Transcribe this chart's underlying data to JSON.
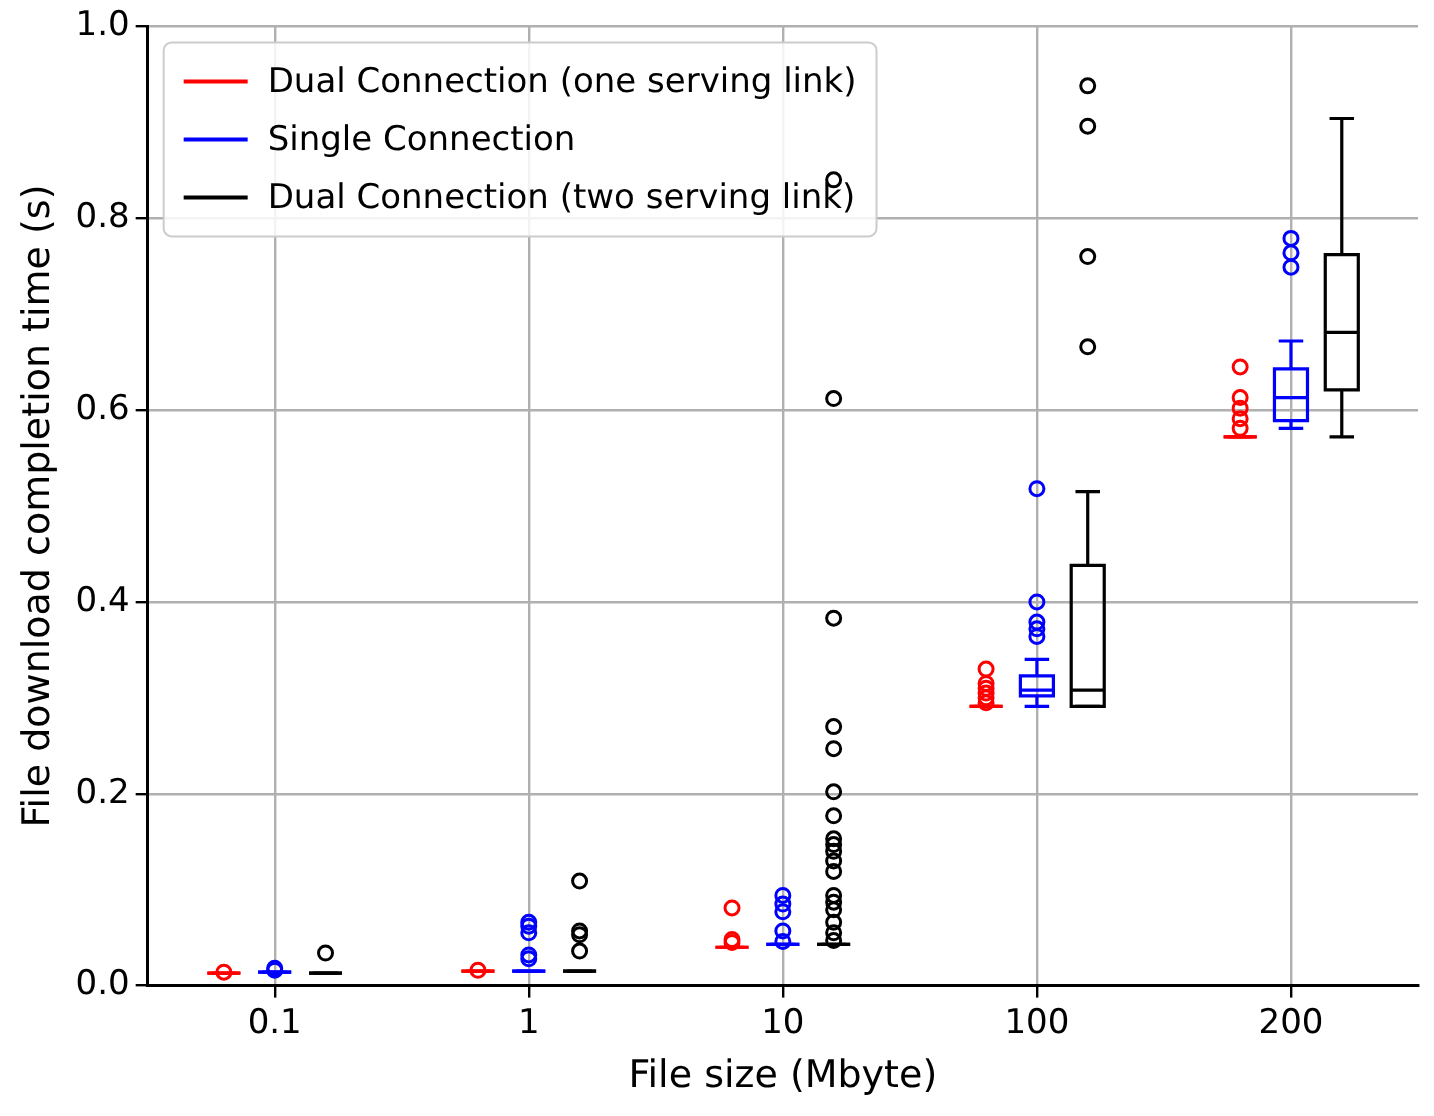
{
  "chart_data": {
    "type": "box",
    "xlabel": "File size (Mbyte)",
    "ylabel": "File download completion time (s)",
    "categories": [
      "0.1",
      "1",
      "10",
      "100",
      "200"
    ],
    "ylim": [
      0,
      1
    ],
    "yticks": [
      {
        "value": 0,
        "label": "0.0"
      },
      {
        "value": 0.2,
        "label": "0.2"
      },
      {
        "value": 0.4,
        "label": "0.4"
      },
      {
        "value": 0.6,
        "label": "0.6"
      },
      {
        "value": 0.8,
        "label": "0.8"
      },
      {
        "value": 1,
        "label": "1.0"
      }
    ],
    "grid": true,
    "legend": "top left",
    "marker": "circle",
    "series": [
      {
        "name": "Dual Connection (one serving link)",
        "color": "#ff0000",
        "boxes": [
          {
            "low": 0.013,
            "q1": 0.013,
            "median": 0.013,
            "q3": 0.013,
            "high": 0.013,
            "outliers": [
              0.014
            ]
          },
          {
            "low": 0.015,
            "q1": 0.015,
            "median": 0.015,
            "q3": 0.015,
            "high": 0.015,
            "outliers": [
              0.016
            ]
          },
          {
            "low": 0.04,
            "q1": 0.04,
            "median": 0.04,
            "q3": 0.04,
            "high": 0.04,
            "outliers": [
              0.045,
              0.048,
              0.081
            ]
          },
          {
            "low": 0.291,
            "q1": 0.291,
            "median": 0.291,
            "q3": 0.291,
            "high": 0.291,
            "outliers": [
              0.295,
              0.3,
              0.305,
              0.31,
              0.315,
              0.33
            ]
          },
          {
            "low": 0.572,
            "q1": 0.572,
            "median": 0.572,
            "q3": 0.572,
            "high": 0.572,
            "outliers": [
              0.581,
              0.591,
              0.602,
              0.613,
              0.645
            ]
          }
        ]
      },
      {
        "name": "Single Connection",
        "color": "#0000ff",
        "boxes": [
          {
            "low": 0.014,
            "q1": 0.014,
            "median": 0.014,
            "q3": 0.014,
            "high": 0.014,
            "outliers": [
              0.016,
              0.018
            ]
          },
          {
            "low": 0.015,
            "q1": 0.015,
            "median": 0.015,
            "q3": 0.015,
            "high": 0.015,
            "outliers": [
              0.028,
              0.032,
              0.055,
              0.062,
              0.066
            ]
          },
          {
            "low": 0.043,
            "q1": 0.043,
            "median": 0.043,
            "q3": 0.043,
            "high": 0.043,
            "outliers": [
              0.046,
              0.057,
              0.077,
              0.085,
              0.094
            ]
          },
          {
            "low": 0.291,
            "q1": 0.302,
            "median": 0.308,
            "q3": 0.323,
            "high": 0.34,
            "outliers": [
              0.364,
              0.372,
              0.379,
              0.4,
              0.518
            ]
          },
          {
            "low": 0.581,
            "q1": 0.589,
            "median": 0.613,
            "q3": 0.643,
            "high": 0.672,
            "outliers": [
              0.749,
              0.764,
              0.779
            ]
          }
        ]
      },
      {
        "name": "Dual Connection (two serving link)",
        "color": "#000000",
        "boxes": [
          {
            "low": 0.013,
            "q1": 0.013,
            "median": 0.013,
            "q3": 0.013,
            "high": 0.013,
            "outliers": [
              0.034
            ]
          },
          {
            "low": 0.015,
            "q1": 0.015,
            "median": 0.015,
            "q3": 0.015,
            "high": 0.015,
            "outliers": [
              0.036,
              0.053,
              0.057,
              0.109
            ]
          },
          {
            "low": 0.043,
            "q1": 0.043,
            "median": 0.043,
            "q3": 0.043,
            "high": 0.043,
            "outliers": [
              0.047,
              0.055,
              0.066,
              0.079,
              0.087,
              0.094,
              0.119,
              0.13,
              0.14,
              0.147,
              0.153,
              0.177,
              0.202,
              0.247,
              0.27,
              0.383,
              0.612,
              0.84
            ]
          },
          {
            "low": 0.291,
            "q1": 0.291,
            "median": 0.308,
            "q3": 0.438,
            "high": 0.515,
            "outliers": [
              0.666,
              0.76,
              0.896,
              0.938
            ]
          },
          {
            "low": 0.572,
            "q1": 0.621,
            "median": 0.681,
            "q3": 0.762,
            "high": 0.904
          }
        ]
      }
    ]
  }
}
